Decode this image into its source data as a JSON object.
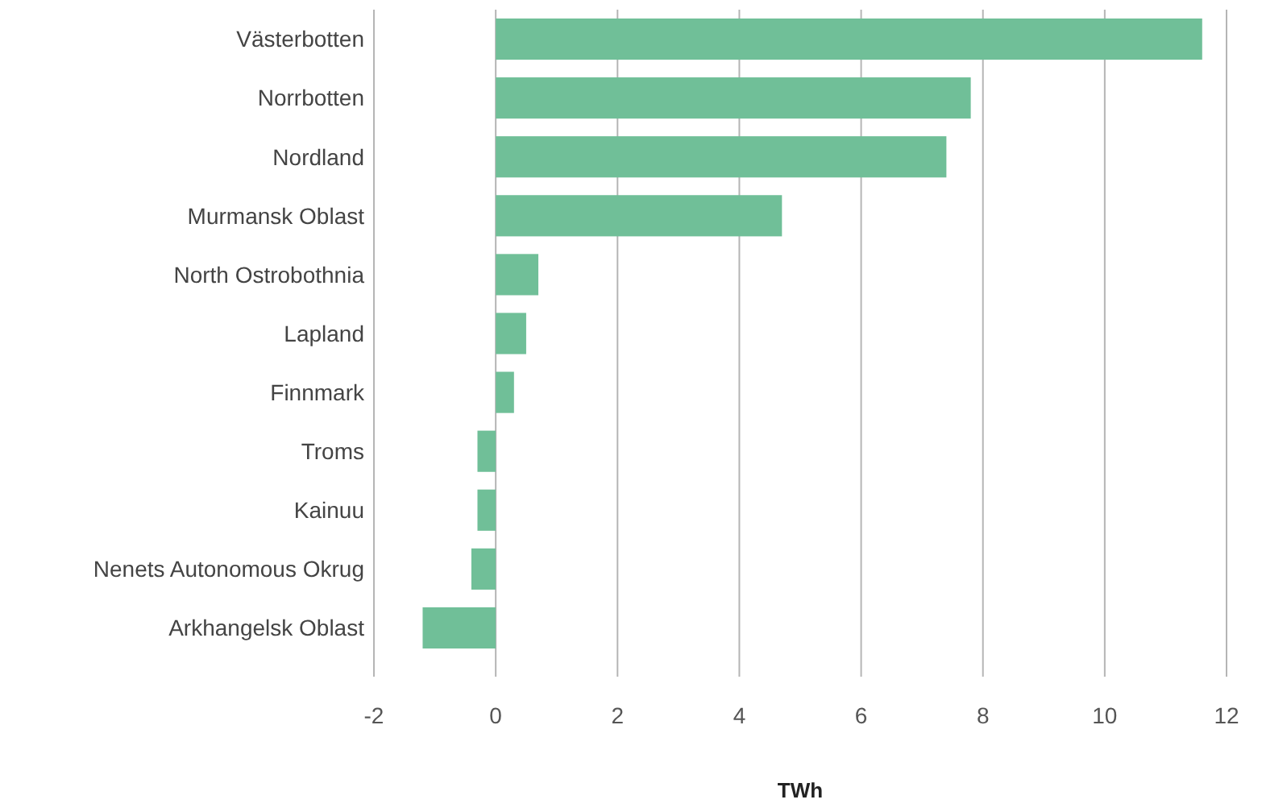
{
  "chart_data": {
    "type": "bar",
    "orientation": "horizontal",
    "xlabel": "TWh",
    "categories": [
      "Västerbotten",
      "Norrbotten",
      "Nordland",
      "Murmansk Oblast",
      "North Ostrobothnia",
      "Lapland",
      "Finnmark",
      "Troms",
      "Kainuu",
      "Nenets Autonomous Okrug",
      "Arkhangelsk Oblast"
    ],
    "values": [
      11.6,
      7.8,
      7.4,
      4.7,
      0.7,
      0.5,
      0.3,
      -0.3,
      -0.3,
      -0.4,
      -1.2
    ],
    "color": "#70bf98",
    "xlim": [
      -2,
      12
    ],
    "xticks": [
      -2,
      0,
      2,
      4,
      6,
      8,
      10,
      12
    ],
    "grid": "x"
  }
}
